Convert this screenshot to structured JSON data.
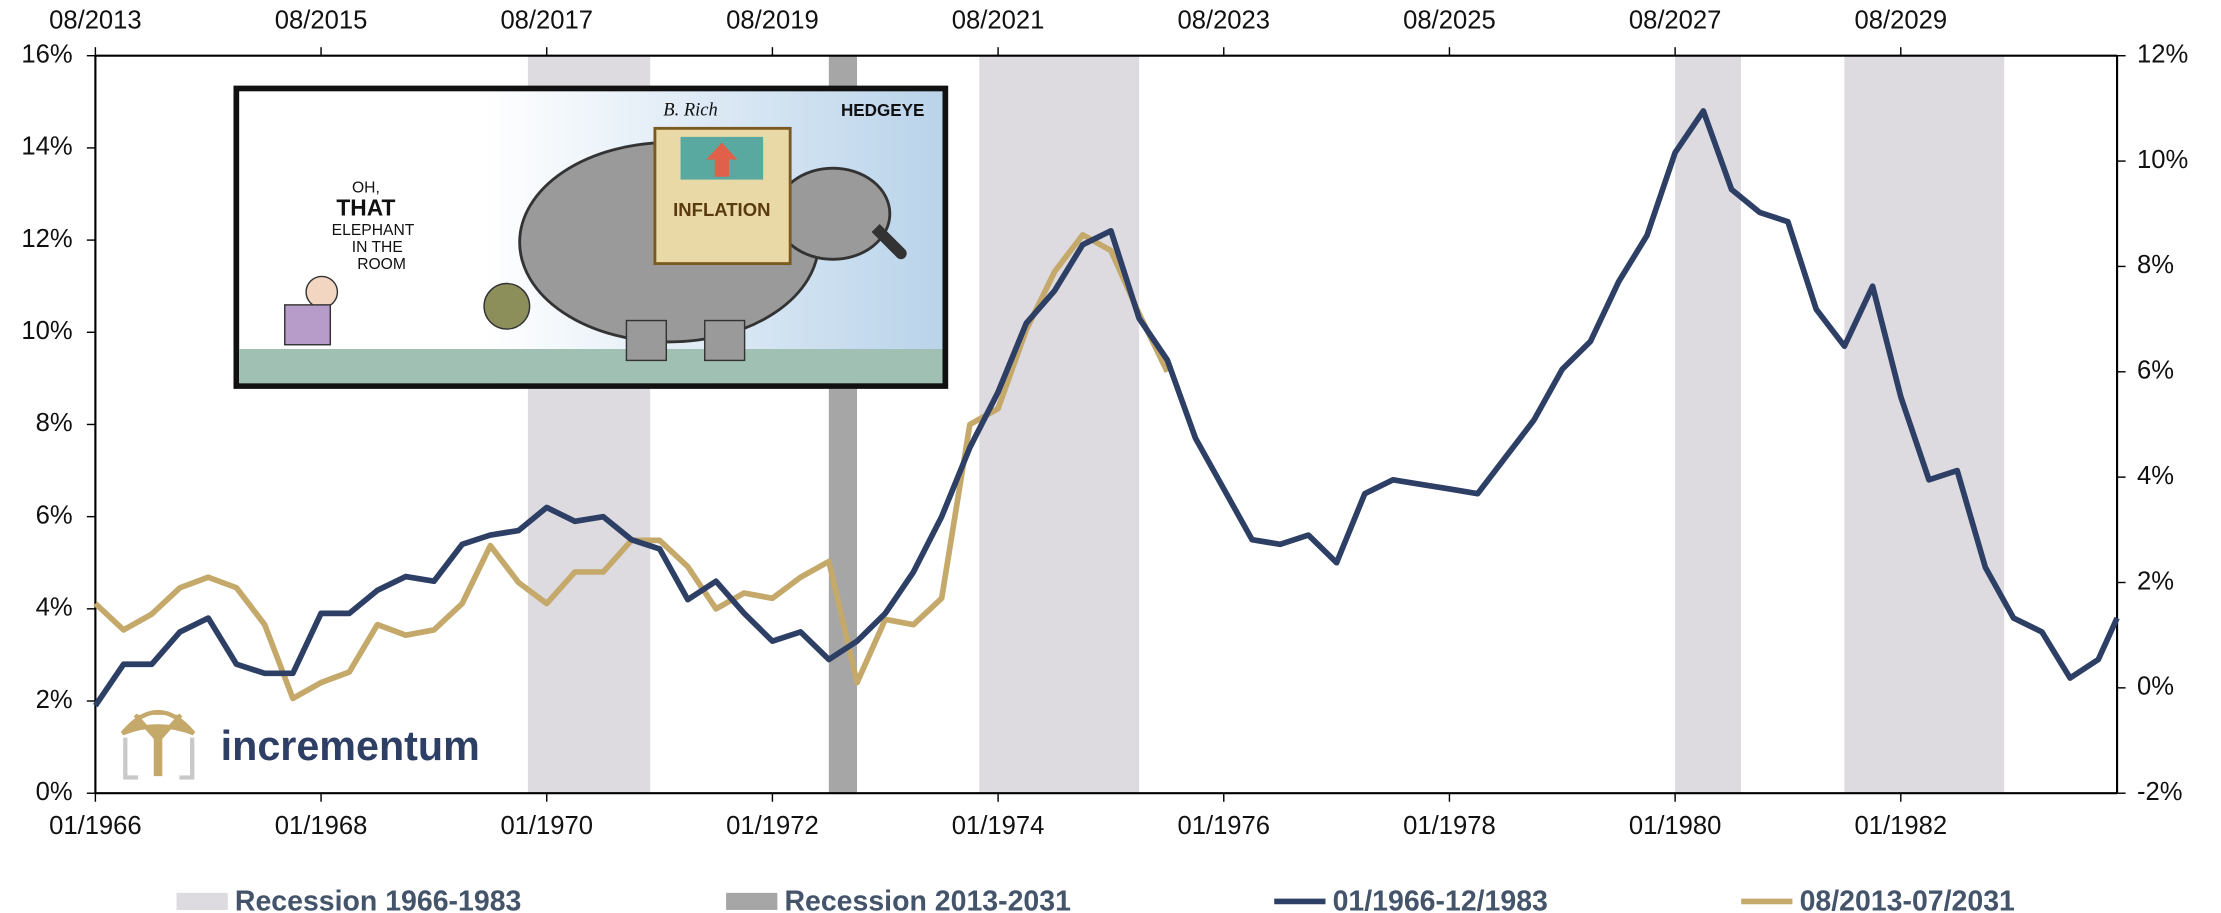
{
  "chart_data": {
    "type": "line",
    "xlim": [
      "01/1966",
      "12/1983"
    ],
    "xticks": [
      "01/1966",
      "01/1968",
      "01/1970",
      "01/1972",
      "01/1974",
      "01/1976",
      "01/1978",
      "01/1980",
      "01/1982"
    ],
    "x2lim": [
      "08/2013",
      "07/2031"
    ],
    "x2ticks": [
      "08/2013",
      "08/2015",
      "08/2017",
      "08/2019",
      "08/2021",
      "08/2023",
      "08/2025",
      "08/2027",
      "08/2029"
    ],
    "ylim": [
      0,
      16
    ],
    "yticks": [
      {
        "value": 0,
        "label": "0%"
      },
      {
        "value": 2,
        "label": "2%"
      },
      {
        "value": 4,
        "label": "4%"
      },
      {
        "value": 6,
        "label": "6%"
      },
      {
        "value": 8,
        "label": "8%"
      },
      {
        "value": 10,
        "label": "10%"
      },
      {
        "value": 12,
        "label": "12%"
      },
      {
        "value": 14,
        "label": "14%"
      },
      {
        "value": 16,
        "label": "16%"
      }
    ],
    "y2lim": [
      -2,
      12
    ],
    "y2ticks": [
      {
        "value": -2,
        "label": "-2%"
      },
      {
        "value": 0,
        "label": "0%"
      },
      {
        "value": 2,
        "label": "2%"
      },
      {
        "value": 4,
        "label": "4%"
      },
      {
        "value": 6,
        "label": "6%"
      },
      {
        "value": 8,
        "label": "8%"
      },
      {
        "value": 10,
        "label": "10%"
      },
      {
        "value": 12,
        "label": "12%"
      }
    ],
    "recessions": [
      {
        "name": "Recession 1966-1983",
        "color": "#dddbe0",
        "xaxis": "x",
        "periods": [
          [
            "11/1969",
            "11/1970"
          ],
          [
            "11/1973",
            "03/1975"
          ],
          [
            "01/1980",
            "07/1980"
          ],
          [
            "07/1981",
            "11/1982"
          ]
        ]
      },
      {
        "name": "Recession 2013-2031",
        "color": "#a6a6a6",
        "xaxis": "x2",
        "periods": [
          [
            "02/2020",
            "04/2020"
          ]
        ]
      }
    ],
    "series": [
      {
        "name": "01/1966-12/1983",
        "color": "#2e3f66",
        "axis": "y",
        "xaxis": "x",
        "x": [
          "01/1966",
          "04/1966",
          "07/1966",
          "10/1966",
          "01/1967",
          "04/1967",
          "07/1967",
          "10/1967",
          "01/1968",
          "04/1968",
          "07/1968",
          "10/1968",
          "01/1969",
          "04/1969",
          "07/1969",
          "10/1969",
          "01/1970",
          "04/1970",
          "07/1970",
          "10/1970",
          "01/1971",
          "04/1971",
          "07/1971",
          "10/1971",
          "01/1972",
          "04/1972",
          "07/1972",
          "10/1972",
          "01/1973",
          "04/1973",
          "07/1973",
          "10/1973",
          "01/1974",
          "04/1974",
          "07/1974",
          "10/1974",
          "01/1975",
          "04/1975",
          "07/1975",
          "10/1975",
          "01/1976",
          "04/1976",
          "07/1976",
          "10/1976",
          "01/1977",
          "04/1977",
          "07/1977",
          "10/1977",
          "01/1978",
          "04/1978",
          "07/1978",
          "10/1978",
          "01/1979",
          "04/1979",
          "07/1979",
          "10/1979",
          "01/1980",
          "04/1980",
          "07/1980",
          "10/1980",
          "01/1981",
          "04/1981",
          "07/1981",
          "10/1981",
          "01/1982",
          "04/1982",
          "07/1982",
          "10/1982",
          "01/1983",
          "04/1983",
          "07/1983",
          "10/1983",
          "12/1983"
        ],
        "values": [
          1.9,
          2.8,
          2.8,
          3.5,
          3.8,
          2.8,
          2.6,
          2.6,
          3.9,
          3.9,
          4.4,
          4.7,
          4.6,
          5.4,
          5.6,
          5.7,
          6.2,
          5.9,
          6.0,
          5.5,
          5.3,
          4.2,
          4.6,
          3.9,
          3.3,
          3.5,
          2.9,
          3.3,
          3.9,
          4.8,
          6.0,
          7.5,
          8.7,
          10.2,
          10.9,
          11.9,
          12.2,
          10.3,
          9.4,
          7.7,
          6.6,
          5.5,
          5.4,
          5.6,
          5.0,
          6.5,
          6.8,
          6.7,
          6.6,
          6.5,
          7.3,
          8.1,
          9.2,
          9.8,
          11.1,
          12.1,
          13.9,
          14.8,
          13.1,
          12.6,
          12.4,
          10.5,
          9.7,
          11.0,
          8.6,
          6.8,
          7.0,
          4.9,
          3.8,
          3.5,
          2.5,
          2.9,
          3.8
        ]
      },
      {
        "name": "08/2013-07/2031",
        "color": "#c4a96b",
        "axis": "y2",
        "xaxis": "x2",
        "x": [
          "08/2013",
          "11/2013",
          "02/2014",
          "05/2014",
          "08/2014",
          "11/2014",
          "02/2015",
          "05/2015",
          "08/2015",
          "11/2015",
          "02/2016",
          "05/2016",
          "08/2016",
          "11/2016",
          "02/2017",
          "05/2017",
          "08/2017",
          "11/2017",
          "02/2018",
          "05/2018",
          "08/2018",
          "11/2018",
          "02/2019",
          "05/2019",
          "08/2019",
          "11/2019",
          "02/2020",
          "05/2020",
          "08/2020",
          "11/2020",
          "02/2021",
          "05/2021",
          "08/2021",
          "11/2021",
          "02/2022",
          "05/2022",
          "08/2022",
          "11/2022",
          "02/2023"
        ],
        "values": [
          1.6,
          1.1,
          1.4,
          1.9,
          2.1,
          1.9,
          1.2,
          -0.2,
          0.1,
          0.3,
          1.2,
          1.0,
          1.1,
          1.6,
          2.7,
          2.0,
          1.6,
          2.2,
          2.2,
          2.8,
          2.8,
          2.3,
          1.5,
          1.8,
          1.7,
          2.1,
          2.4,
          0.1,
          1.3,
          1.2,
          1.7,
          5.0,
          5.3,
          6.8,
          7.9,
          8.6,
          8.3,
          7.1,
          6.0
        ]
      }
    ],
    "cartoon": {
      "caption": [
        "OH,",
        "THAT",
        "ELEPHANT",
        "IN THE",
        "ROOM"
      ],
      "banner": "INFLATION",
      "signature": "B. Rich",
      "brand": "HEDGEYE"
    },
    "logo": "incrementum"
  }
}
